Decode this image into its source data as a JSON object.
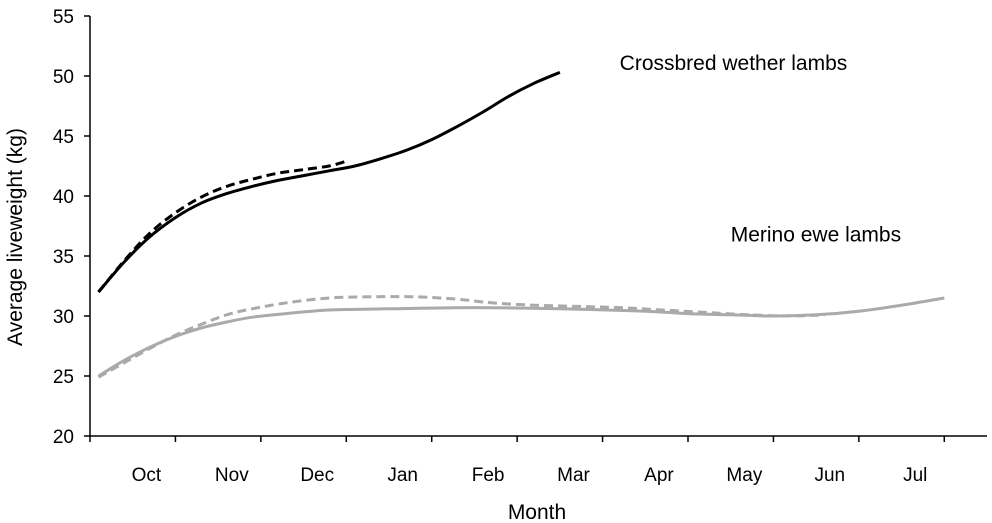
{
  "chart_data": {
    "type": "line",
    "title": "",
    "xlabel": "Month",
    "ylabel": "Average liveweight (kg)",
    "ylim": [
      20,
      55
    ],
    "yticks": [
      20,
      25,
      30,
      35,
      40,
      45,
      50,
      55
    ],
    "x_unit": "months since 1 Sep",
    "xlim": [
      0,
      10.5
    ],
    "month_ticks": [
      {
        "label": "Oct",
        "x": 0.66
      },
      {
        "label": "Nov",
        "x": 1.66
      },
      {
        "label": "Dec",
        "x": 2.66
      },
      {
        "label": "Jan",
        "x": 3.66
      },
      {
        "label": "Feb",
        "x": 4.66
      },
      {
        "label": "Mar",
        "x": 5.66
      },
      {
        "label": "Apr",
        "x": 6.66
      },
      {
        "label": "May",
        "x": 7.66
      },
      {
        "label": "Jun",
        "x": 8.66
      },
      {
        "label": "Jul",
        "x": 9.66
      }
    ],
    "grid": false,
    "legend": "none",
    "annotations": [
      {
        "text": "Crossbred wether lambs",
        "x": 6.2,
        "y": 50.5
      },
      {
        "text": "Merino ewe lambs",
        "x": 7.5,
        "y": 36.2
      }
    ],
    "series": [
      {
        "group": "Crossbred wether lambs",
        "style": "solid",
        "color": "#000000",
        "points": [
          [
            0.1,
            32.0
          ],
          [
            0.4,
            34.5
          ],
          [
            0.7,
            36.6
          ],
          [
            1.0,
            38.2
          ],
          [
            1.3,
            39.4
          ],
          [
            1.6,
            40.2
          ],
          [
            1.9,
            40.8
          ],
          [
            2.2,
            41.3
          ],
          [
            2.5,
            41.7
          ],
          [
            2.8,
            42.1
          ],
          [
            3.1,
            42.5
          ],
          [
            3.4,
            43.1
          ],
          [
            3.7,
            43.8
          ],
          [
            4.0,
            44.7
          ],
          [
            4.3,
            45.8
          ],
          [
            4.6,
            47.0
          ],
          [
            4.9,
            48.3
          ],
          [
            5.2,
            49.4
          ],
          [
            5.5,
            50.3
          ]
        ]
      },
      {
        "group": "Crossbred wether lambs",
        "style": "dashed",
        "color": "#000000",
        "points": [
          [
            0.1,
            32.0
          ],
          [
            0.4,
            34.6
          ],
          [
            0.7,
            36.9
          ],
          [
            1.0,
            38.6
          ],
          [
            1.3,
            39.9
          ],
          [
            1.6,
            40.8
          ],
          [
            1.9,
            41.4
          ],
          [
            2.2,
            41.9
          ],
          [
            2.5,
            42.2
          ],
          [
            2.8,
            42.5
          ],
          [
            3.0,
            42.9
          ]
        ]
      },
      {
        "group": "Merino ewe lambs",
        "style": "solid",
        "color": "#aaaaaa",
        "points": [
          [
            0.1,
            25.0
          ],
          [
            0.4,
            26.3
          ],
          [
            0.7,
            27.4
          ],
          [
            1.0,
            28.3
          ],
          [
            1.3,
            29.0
          ],
          [
            1.6,
            29.5
          ],
          [
            1.9,
            29.9
          ],
          [
            2.3,
            30.2
          ],
          [
            2.8,
            30.5
          ],
          [
            3.5,
            30.6
          ],
          [
            4.5,
            30.7
          ],
          [
            5.5,
            30.6
          ],
          [
            6.5,
            30.4
          ],
          [
            7.0,
            30.2
          ],
          [
            7.5,
            30.1
          ],
          [
            8.0,
            30.0
          ],
          [
            8.5,
            30.1
          ],
          [
            9.0,
            30.4
          ],
          [
            9.5,
            30.9
          ],
          [
            10.0,
            31.5
          ]
        ]
      },
      {
        "group": "Merino ewe lambs",
        "style": "dashed",
        "color": "#aaaaaa",
        "points": [
          [
            0.1,
            24.9
          ],
          [
            0.4,
            26.1
          ],
          [
            0.7,
            27.3
          ],
          [
            1.0,
            28.4
          ],
          [
            1.3,
            29.3
          ],
          [
            1.6,
            30.1
          ],
          [
            1.9,
            30.6
          ],
          [
            2.3,
            31.1
          ],
          [
            2.8,
            31.5
          ],
          [
            3.3,
            31.6
          ],
          [
            3.8,
            31.6
          ],
          [
            4.3,
            31.4
          ],
          [
            4.7,
            31.1
          ],
          [
            5.2,
            30.9
          ],
          [
            5.7,
            30.8
          ],
          [
            6.2,
            30.7
          ],
          [
            6.7,
            30.5
          ],
          [
            7.2,
            30.3
          ],
          [
            7.7,
            30.1
          ],
          [
            8.2,
            30.0
          ],
          [
            8.6,
            30.1
          ]
        ]
      }
    ]
  }
}
